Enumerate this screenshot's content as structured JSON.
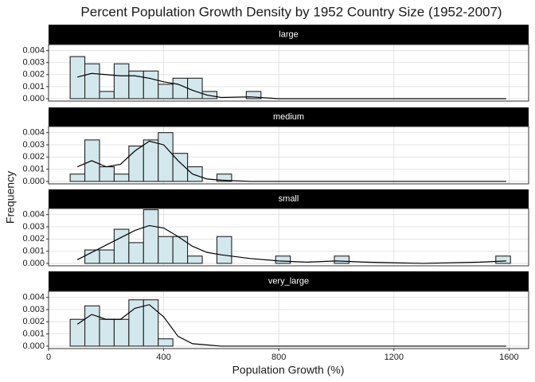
{
  "chart_data": {
    "type": "histogram",
    "title": "Percent Population Growth Density by 1952 Country Size (1952-2007)",
    "x_label": "Population Growth (%)",
    "y_label": "Frequency",
    "bins": [
      75,
      126,
      177,
      228,
      279,
      330,
      381,
      432,
      483,
      534,
      585,
      636,
      687,
      738,
      789,
      840,
      891,
      942,
      993,
      1044,
      1095,
      1146,
      1197,
      1248,
      1299,
      1350,
      1401,
      1452,
      1503,
      1554,
      1605
    ],
    "xlim": [
      0,
      1668
    ],
    "xticks": [
      0,
      400,
      800,
      1200,
      1600
    ],
    "ylim": [
      -0.0002,
      0.0045
    ],
    "yticks": [
      {
        "value": 0,
        "label": "0.000"
      },
      {
        "value": 0.001,
        "label": "0.001"
      },
      {
        "value": 0.002,
        "label": "0.002"
      },
      {
        "value": 0.003,
        "label": "0.003"
      },
      {
        "value": 0.004,
        "label": "0.004"
      }
    ],
    "bar_color": "#d3e8ec",
    "line_color": "#000000",
    "grid": true,
    "facets": [
      {
        "name": "large",
        "values": [
          0.0035,
          0.0029,
          0.0006,
          0.0029,
          0.0023,
          0.0023,
          0.0012,
          0.0017,
          0.0017,
          0.0006,
          0,
          0,
          0.0006,
          0,
          0,
          0,
          0,
          0,
          0,
          0,
          0,
          0,
          0,
          0,
          0,
          0,
          0,
          0,
          0,
          0
        ],
        "density": {
          "x": [
            100,
            150,
            200,
            250,
            300,
            350,
            400,
            450,
            500,
            550,
            600,
            700,
            800,
            1590
          ],
          "values": [
            0.0018,
            0.0021,
            0.002,
            0.0019,
            0.0019,
            0.0017,
            0.0014,
            0.0012,
            0.0007,
            0.0003,
            0.0001,
            0.00015,
            0,
            0
          ]
        }
      },
      {
        "name": "medium",
        "values": [
          0.0006,
          0.0034,
          0.0012,
          0.0006,
          0.0029,
          0.0034,
          0.004,
          0.0023,
          0.0012,
          0,
          0.0006,
          0,
          0,
          0,
          0,
          0,
          0,
          0,
          0,
          0,
          0,
          0,
          0,
          0,
          0,
          0,
          0,
          0,
          0,
          0
        ],
        "density": {
          "x": [
            100,
            150,
            200,
            250,
            300,
            350,
            400,
            450,
            500,
            550,
            600,
            700,
            1590
          ],
          "values": [
            0.0012,
            0.0017,
            0.0012,
            0.0014,
            0.0025,
            0.0033,
            0.003,
            0.0017,
            0.0006,
            0.0002,
            0.0001,
            0,
            0
          ]
        }
      },
      {
        "name": "small",
        "values": [
          0,
          0.0011,
          0.0011,
          0.0028,
          0.0017,
          0.0044,
          0.0022,
          0.0022,
          0.0006,
          0,
          0.0022,
          0,
          0,
          0,
          0.0006,
          0,
          0,
          0,
          0.0006,
          0,
          0,
          0,
          0,
          0,
          0,
          0,
          0,
          0,
          0,
          0.0006
        ],
        "density": {
          "x": [
            100,
            200,
            300,
            350,
            400,
            450,
            500,
            550,
            600,
            700,
            800,
            900,
            1000,
            1100,
            1300,
            1500,
            1590
          ],
          "values": [
            0.0003,
            0.0015,
            0.0027,
            0.0031,
            0.0029,
            0.0022,
            0.0014,
            0.0009,
            0.0007,
            0.0004,
            0.0002,
            0.0001,
            0.0002,
            0.0001,
            0,
            0.0001,
            0.0002
          ]
        }
      },
      {
        "name": "very_large",
        "values": [
          0.0022,
          0.0033,
          0.0022,
          0.0022,
          0.0038,
          0.0038,
          0.0006,
          0,
          0,
          0,
          0,
          0,
          0,
          0,
          0,
          0,
          0,
          0,
          0,
          0,
          0,
          0,
          0,
          0,
          0,
          0,
          0,
          0,
          0,
          0
        ],
        "density": {
          "x": [
            100,
            150,
            200,
            250,
            300,
            350,
            400,
            450,
            500,
            600,
            1590
          ],
          "values": [
            0.0018,
            0.0026,
            0.0022,
            0.0022,
            0.0031,
            0.0034,
            0.0024,
            0.0008,
            0.0002,
            0,
            0
          ]
        }
      }
    ]
  }
}
